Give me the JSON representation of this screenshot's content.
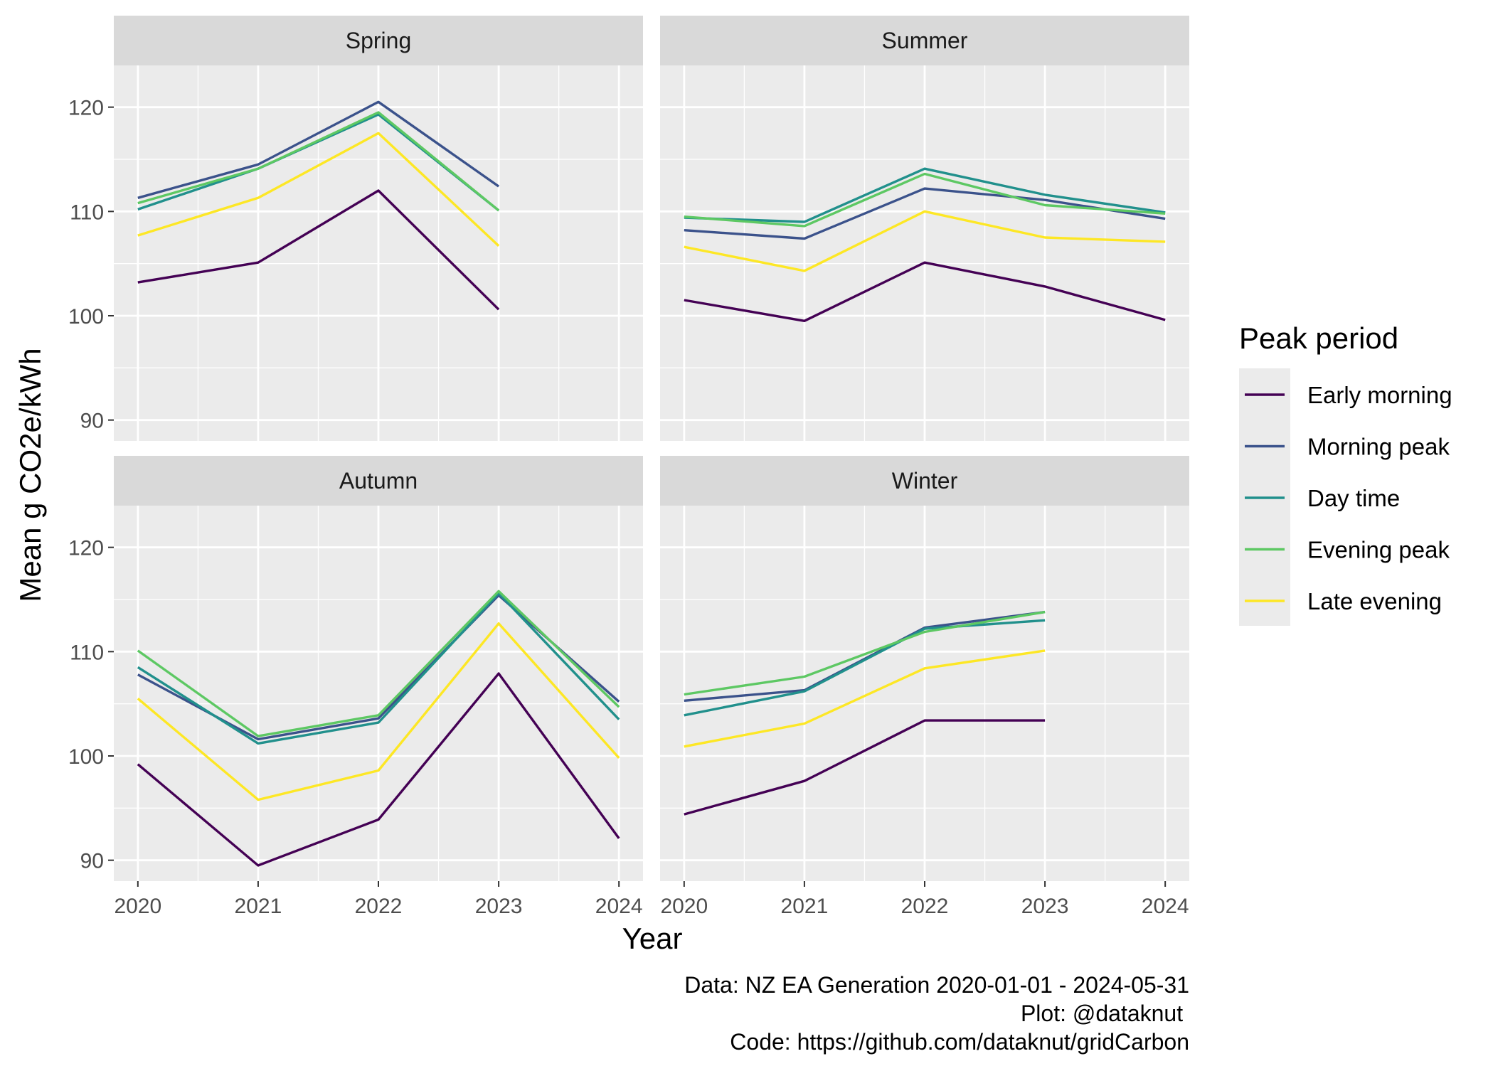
{
  "chart_data": {
    "type": "line",
    "facets": [
      "Spring",
      "Summer",
      "Autumn",
      "Winter"
    ],
    "x": [
      2020,
      2021,
      2022,
      2023,
      2024
    ],
    "xlabel": "Year",
    "ylabel": "Mean g CO2e/kWh",
    "ylim": [
      88,
      124
    ],
    "yticks": [
      90,
      100,
      110,
      120
    ],
    "grid": true,
    "legend_title": "Peak period",
    "legend_position": "right",
    "series": [
      {
        "name": "Early morning",
        "color": "#440154",
        "values": {
          "Spring": [
            103.2,
            105.1,
            112.0,
            100.6,
            null
          ],
          "Summer": [
            101.5,
            99.5,
            105.1,
            102.8,
            99.6
          ],
          "Autumn": [
            99.2,
            89.5,
            93.9,
            107.9,
            92.1
          ],
          "Winter": [
            94.4,
            97.6,
            103.4,
            103.4,
            null
          ]
        }
      },
      {
        "name": "Morning peak",
        "color": "#3B528B",
        "values": {
          "Spring": [
            111.3,
            114.5,
            120.5,
            112.4,
            null
          ],
          "Summer": [
            108.2,
            107.4,
            112.2,
            111.1,
            109.3
          ],
          "Autumn": [
            107.8,
            101.6,
            103.6,
            115.4,
            105.2
          ],
          "Winter": [
            105.3,
            106.3,
            112.3,
            113.8,
            null
          ]
        }
      },
      {
        "name": "Day time",
        "color": "#21908C",
        "values": {
          "Spring": [
            110.2,
            114.1,
            119.3,
            110.1,
            null
          ],
          "Summer": [
            109.4,
            109.0,
            114.1,
            111.6,
            109.9
          ],
          "Autumn": [
            108.5,
            101.2,
            103.2,
            115.6,
            103.5
          ],
          "Winter": [
            103.9,
            106.2,
            112.2,
            113.0,
            null
          ]
        }
      },
      {
        "name": "Evening peak",
        "color": "#5DC863",
        "values": {
          "Spring": [
            110.8,
            114.1,
            119.5,
            110.1,
            null
          ],
          "Summer": [
            109.5,
            108.6,
            113.6,
            110.6,
            109.8
          ],
          "Autumn": [
            110.1,
            101.9,
            103.9,
            115.8,
            104.7
          ],
          "Winter": [
            105.9,
            107.6,
            111.9,
            113.8,
            null
          ]
        }
      },
      {
        "name": "Late evening",
        "color": "#FDE725",
        "values": {
          "Spring": [
            107.7,
            111.3,
            117.5,
            106.7,
            null
          ],
          "Summer": [
            106.6,
            104.3,
            110.0,
            107.5,
            107.1
          ],
          "Autumn": [
            105.5,
            95.8,
            98.6,
            112.7,
            99.8
          ],
          "Winter": [
            100.9,
            103.1,
            108.4,
            110.1,
            null
          ]
        }
      }
    ]
  },
  "caption": {
    "line1": "Data: NZ EA Generation 2020-01-01 - 2024-05-31",
    "line2": "Plot: @dataknut ",
    "line3": "Code: https://github.com/dataknut/gridCarbon"
  }
}
